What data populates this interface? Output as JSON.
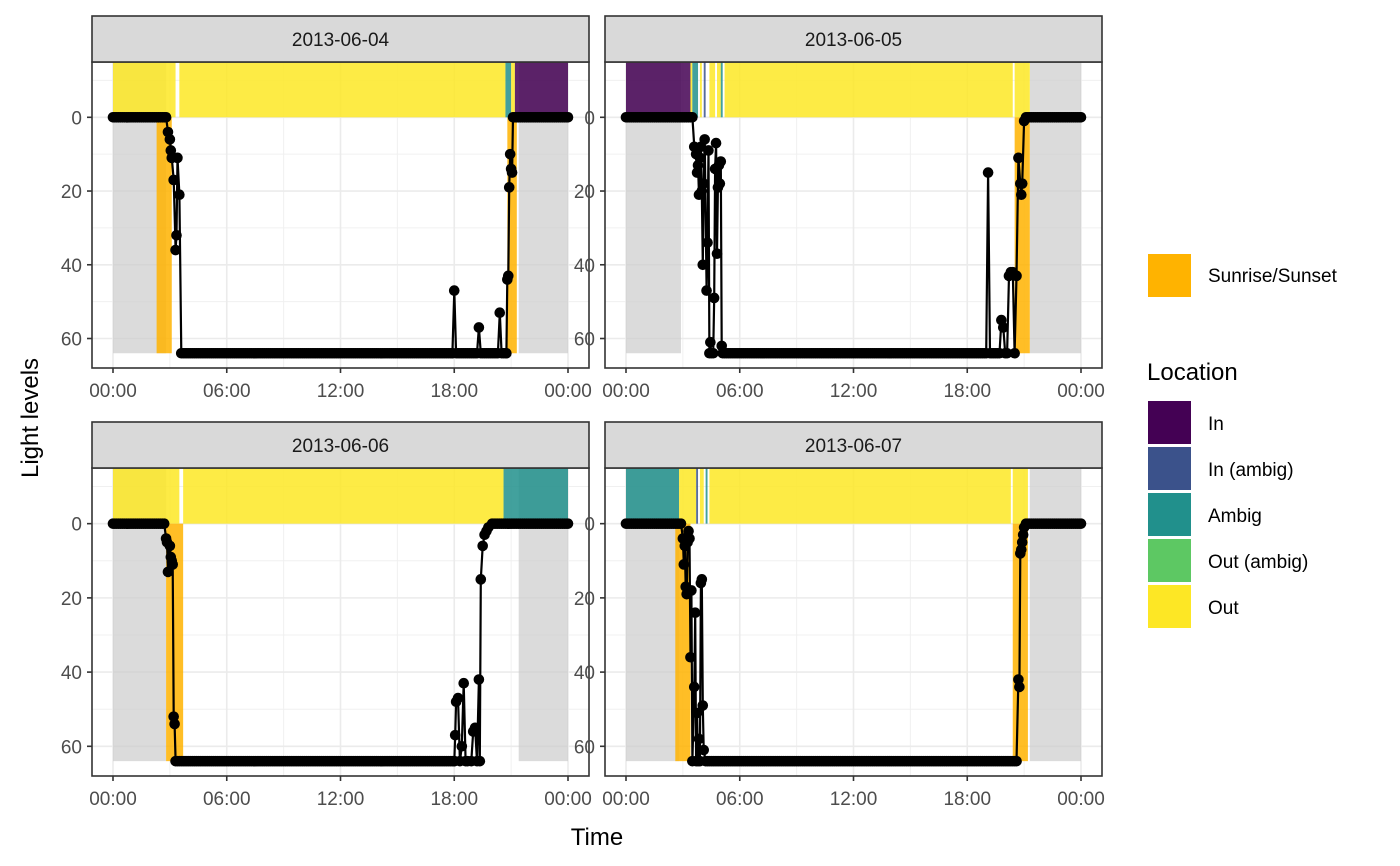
{
  "chart_data": {
    "type": "line",
    "xlabel": "Time",
    "ylabel": "Light levels",
    "x_ticks": [
      "00:00",
      "06:00",
      "12:00",
      "18:00",
      "00:00"
    ],
    "y_ticks": [
      0,
      20,
      40,
      60
    ],
    "ylim": [
      68,
      -15
    ],
    "y_reversed": true,
    "grid": true,
    "legend_position": "right",
    "legend": {
      "sun_item": "Sunrise/Sunset",
      "location_title": "Location",
      "location_items": [
        "In",
        "In (ambig)",
        "Ambig",
        "Out (ambig)",
        "Out"
      ]
    },
    "colors": {
      "In": "#440154",
      "In (ambig)": "#3B528B",
      "Ambig": "#21908C",
      "Out (ambig)": "#5DC863",
      "Out": "#FDE725",
      "Sunrise/Sunset": "#FFB300",
      "night": "#cccccc"
    },
    "panels": [
      {
        "date": "2013-06-04",
        "night": [
          [
            0,
            2.8
          ],
          [
            21.4,
            24
          ]
        ],
        "sun": [
          [
            2.3,
            3.1
          ],
          [
            20.8,
            21.3
          ]
        ],
        "location": [
          [
            0,
            3.3,
            "Out"
          ],
          [
            3.5,
            20.7,
            "Out"
          ],
          [
            20.7,
            21.0,
            "Ambig"
          ],
          [
            21.0,
            21.2,
            "Out"
          ],
          [
            21.2,
            24,
            "In"
          ]
        ],
        "points": [
          [
            0,
            0
          ],
          [
            2.8,
            0
          ],
          [
            2.9,
            4
          ],
          [
            3.0,
            6
          ],
          [
            3.05,
            9
          ],
          [
            3.1,
            11
          ],
          [
            3.2,
            17
          ],
          [
            3.3,
            36
          ],
          [
            3.35,
            32
          ],
          [
            3.4,
            11
          ],
          [
            3.5,
            21
          ],
          [
            3.6,
            64
          ],
          [
            17.9,
            64
          ],
          [
            18.0,
            47
          ],
          [
            18.1,
            64
          ],
          [
            19.2,
            64
          ],
          [
            19.3,
            57
          ],
          [
            19.4,
            64
          ],
          [
            20.3,
            64
          ],
          [
            20.4,
            53
          ],
          [
            20.5,
            64
          ],
          [
            20.75,
            64
          ],
          [
            20.8,
            44
          ],
          [
            20.85,
            43
          ],
          [
            20.9,
            19
          ],
          [
            20.95,
            10
          ],
          [
            21.0,
            14
          ],
          [
            21.05,
            15
          ],
          [
            21.1,
            0
          ],
          [
            24,
            0
          ]
        ]
      },
      {
        "date": "2013-06-05",
        "night": [
          [
            0,
            2.9
          ],
          [
            21.3,
            24
          ]
        ],
        "sun": [
          [
            20.5,
            21.3
          ]
        ],
        "location": [
          [
            0,
            3.4,
            "In"
          ],
          [
            3.4,
            3.5,
            "Out"
          ],
          [
            3.5,
            3.8,
            "Ambig"
          ],
          [
            3.9,
            4.0,
            "Out"
          ],
          [
            4.1,
            4.2,
            "In (ambig)"
          ],
          [
            4.4,
            4.7,
            "Out"
          ],
          [
            4.8,
            5.0,
            "Out"
          ],
          [
            5.0,
            5.1,
            "Ambig"
          ],
          [
            5.2,
            20.4,
            "Out"
          ],
          [
            20.5,
            21.3,
            "Out"
          ]
        ],
        "points": [
          [
            0,
            0
          ],
          [
            3.5,
            0
          ],
          [
            3.6,
            8
          ],
          [
            3.7,
            10
          ],
          [
            3.75,
            15
          ],
          [
            3.8,
            13
          ],
          [
            3.85,
            21
          ],
          [
            3.9,
            11
          ],
          [
            3.95,
            8
          ],
          [
            4.0,
            20
          ],
          [
            4.05,
            40
          ],
          [
            4.1,
            18
          ],
          [
            4.15,
            6
          ],
          [
            4.25,
            47
          ],
          [
            4.3,
            34
          ],
          [
            4.35,
            9
          ],
          [
            4.4,
            64
          ],
          [
            4.45,
            61
          ],
          [
            4.5,
            64
          ],
          [
            4.6,
            64
          ],
          [
            4.65,
            49
          ],
          [
            4.7,
            14
          ],
          [
            4.75,
            7
          ],
          [
            4.8,
            37
          ],
          [
            4.85,
            19
          ],
          [
            4.9,
            13
          ],
          [
            4.95,
            18
          ],
          [
            5.0,
            12
          ],
          [
            5.05,
            62
          ],
          [
            5.1,
            64
          ],
          [
            19.0,
            64
          ],
          [
            19.1,
            15
          ],
          [
            19.2,
            64
          ],
          [
            19.7,
            64
          ],
          [
            19.8,
            55
          ],
          [
            19.9,
            57
          ],
          [
            20.0,
            64
          ],
          [
            20.1,
            64
          ],
          [
            20.2,
            43
          ],
          [
            20.3,
            42
          ],
          [
            20.4,
            42
          ],
          [
            20.5,
            64
          ],
          [
            20.6,
            43
          ],
          [
            20.7,
            11
          ],
          [
            20.8,
            18
          ],
          [
            20.85,
            21
          ],
          [
            20.9,
            18
          ],
          [
            21.0,
            1
          ],
          [
            21.1,
            0
          ],
          [
            24,
            0
          ]
        ]
      },
      {
        "date": "2013-06-06",
        "night": [
          [
            0,
            2.8
          ],
          [
            21.4,
            24
          ]
        ],
        "sun": [
          [
            2.8,
            3.7
          ]
        ],
        "location": [
          [
            0,
            3.5,
            "Out"
          ],
          [
            3.7,
            20.6,
            "Out"
          ],
          [
            20.6,
            24,
            "Ambig"
          ]
        ],
        "points": [
          [
            0,
            0
          ],
          [
            2.7,
            0
          ],
          [
            2.8,
            4
          ],
          [
            2.85,
            5
          ],
          [
            2.9,
            13
          ],
          [
            3.0,
            6
          ],
          [
            3.05,
            9
          ],
          [
            3.1,
            10
          ],
          [
            3.15,
            11
          ],
          [
            3.2,
            52
          ],
          [
            3.25,
            54
          ],
          [
            3.3,
            64
          ],
          [
            18.0,
            64
          ],
          [
            18.05,
            57
          ],
          [
            18.1,
            48
          ],
          [
            18.2,
            47
          ],
          [
            18.3,
            64
          ],
          [
            18.4,
            60
          ],
          [
            18.5,
            43
          ],
          [
            18.6,
            64
          ],
          [
            18.7,
            64
          ],
          [
            18.9,
            64
          ],
          [
            19.0,
            56
          ],
          [
            19.1,
            55
          ],
          [
            19.2,
            64
          ],
          [
            19.3,
            42
          ],
          [
            19.35,
            64
          ],
          [
            19.4,
            15
          ],
          [
            19.5,
            6
          ],
          [
            19.6,
            3
          ],
          [
            19.7,
            2
          ],
          [
            19.8,
            1
          ],
          [
            20.0,
            0
          ],
          [
            24,
            0
          ]
        ]
      },
      {
        "date": "2013-06-07",
        "night": [
          [
            0,
            2.8
          ],
          [
            21.3,
            24
          ]
        ],
        "sun": [
          [
            2.6,
            3.4
          ],
          [
            20.4,
            21.2
          ]
        ],
        "location": [
          [
            0,
            2.8,
            "Ambig"
          ],
          [
            2.8,
            3.7,
            "Out"
          ],
          [
            3.7,
            3.8,
            "In (ambig)"
          ],
          [
            3.9,
            4.1,
            "Out"
          ],
          [
            4.2,
            4.3,
            "Ambig"
          ],
          [
            4.4,
            20.3,
            "Out"
          ],
          [
            20.4,
            21.2,
            "Out"
          ]
        ],
        "points": [
          [
            0,
            0
          ],
          [
            2.9,
            0
          ],
          [
            3.0,
            4
          ],
          [
            3.05,
            11
          ],
          [
            3.1,
            6
          ],
          [
            3.15,
            17
          ],
          [
            3.2,
            19
          ],
          [
            3.25,
            5
          ],
          [
            3.3,
            2
          ],
          [
            3.35,
            4
          ],
          [
            3.4,
            36
          ],
          [
            3.45,
            18
          ],
          [
            3.5,
            64
          ],
          [
            3.6,
            44
          ],
          [
            3.65,
            24
          ],
          [
            3.7,
            64
          ],
          [
            3.75,
            51
          ],
          [
            3.8,
            64
          ],
          [
            3.85,
            58
          ],
          [
            3.9,
            64
          ],
          [
            3.95,
            16
          ],
          [
            4.0,
            15
          ],
          [
            4.05,
            49
          ],
          [
            4.1,
            61
          ],
          [
            4.2,
            64
          ],
          [
            20.6,
            64
          ],
          [
            20.7,
            42
          ],
          [
            20.75,
            44
          ],
          [
            20.8,
            8
          ],
          [
            20.85,
            7
          ],
          [
            20.9,
            5
          ],
          [
            20.95,
            3
          ],
          [
            21.0,
            1
          ],
          [
            21.1,
            0
          ],
          [
            24,
            0
          ]
        ]
      }
    ]
  }
}
